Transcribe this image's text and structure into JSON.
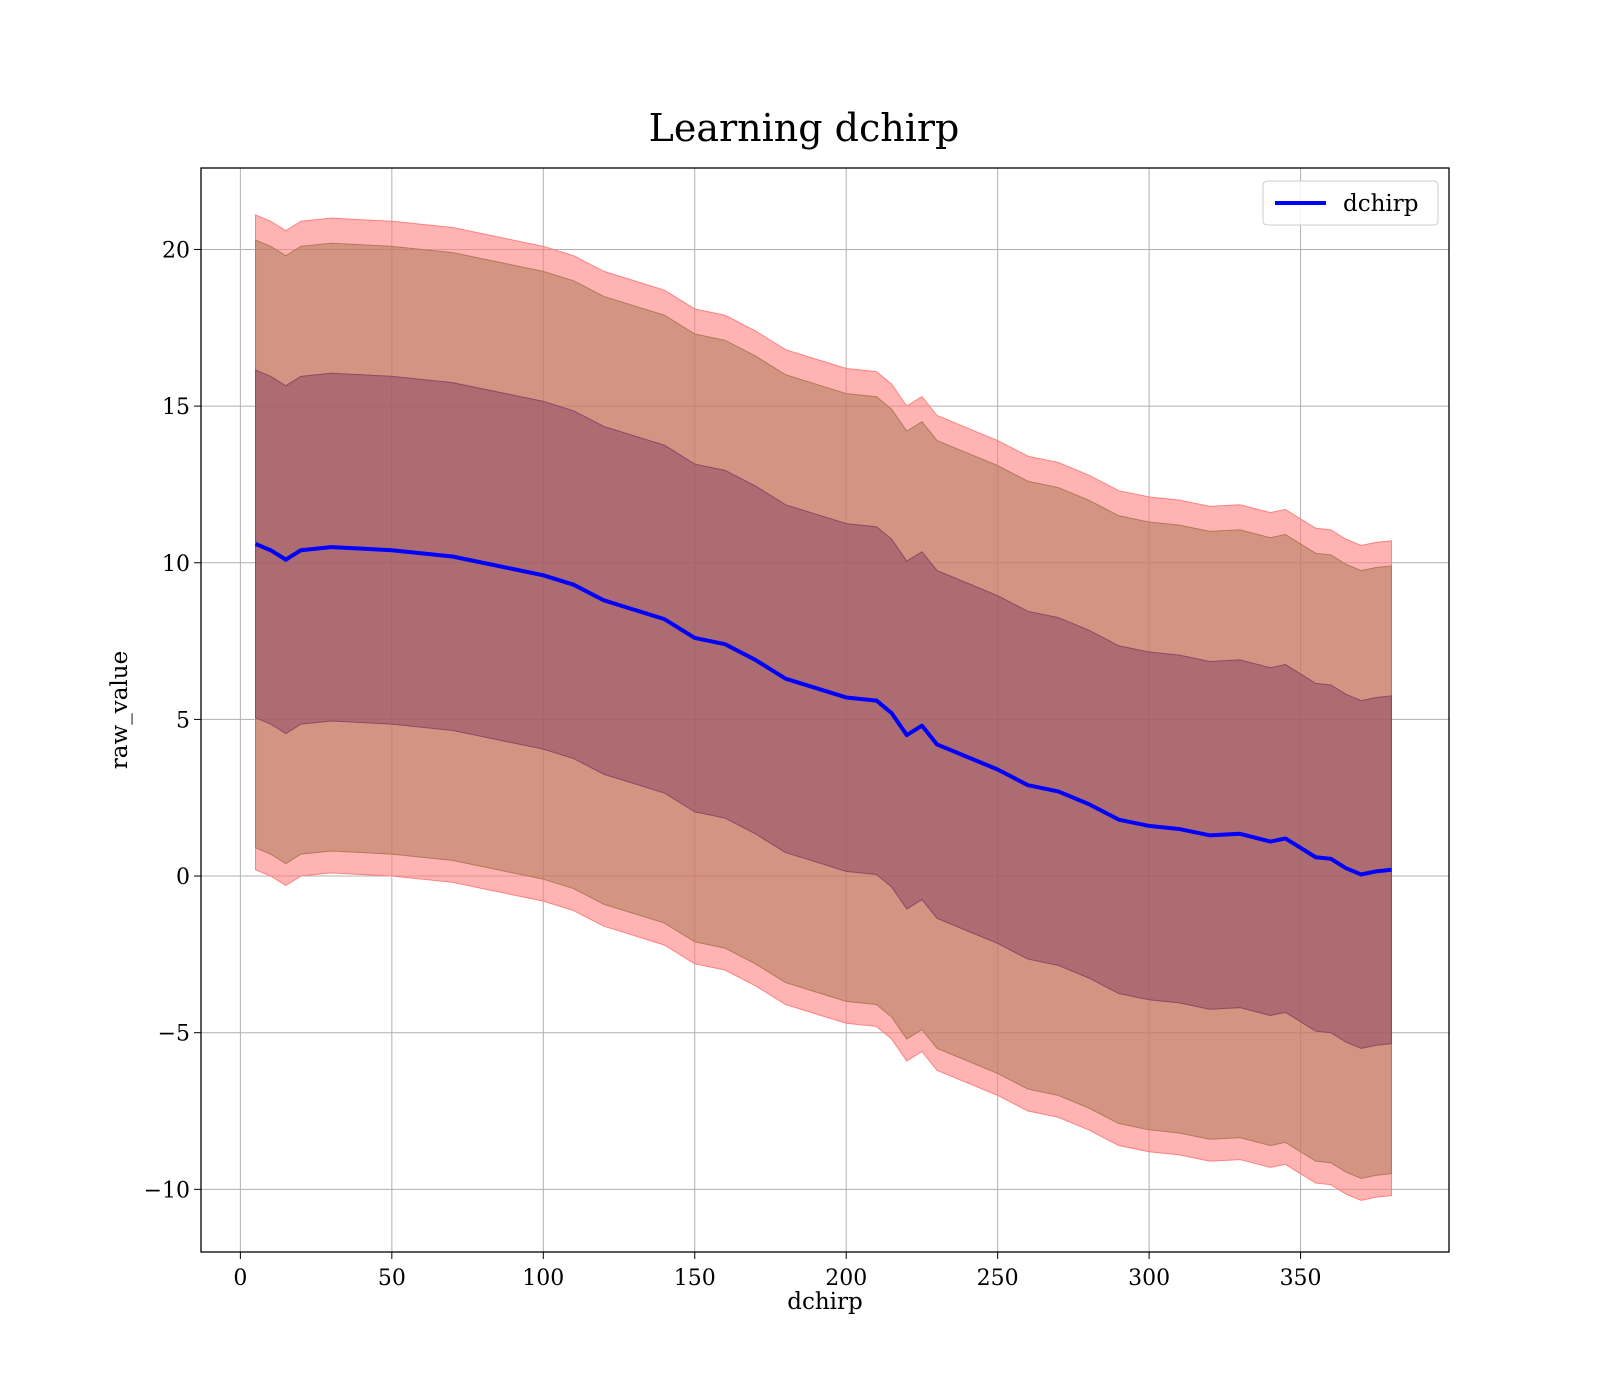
{
  "chart_data": {
    "type": "line",
    "title": "Learning dchirp",
    "xlabel": "dchirp",
    "ylabel": "raw_value",
    "xlim": [
      -13,
      399
    ],
    "ylim": [
      -12,
      22.6
    ],
    "xticks": [
      0,
      50,
      100,
      150,
      200,
      250,
      300,
      350
    ],
    "yticks": [
      -10,
      -5,
      0,
      5,
      10,
      15,
      20
    ],
    "grid": true,
    "legend": {
      "position": "top-right",
      "entries": [
        "dchirp"
      ]
    },
    "x": [
      5,
      10,
      15,
      20,
      30,
      40,
      50,
      60,
      70,
      80,
      90,
      100,
      110,
      120,
      130,
      140,
      150,
      160,
      170,
      180,
      190,
      200,
      210,
      215,
      220,
      225,
      230,
      240,
      250,
      260,
      270,
      280,
      290,
      300,
      310,
      320,
      330,
      340,
      345,
      350,
      355,
      360,
      365,
      370,
      375,
      380
    ],
    "series": [
      {
        "name": "dchirp",
        "color": "#0000ff",
        "values": [
          10.6,
          10.4,
          10.1,
          10.4,
          10.5,
          10.45,
          10.4,
          10.3,
          10.2,
          10.0,
          9.8,
          9.6,
          9.3,
          8.8,
          8.5,
          8.2,
          7.6,
          7.4,
          6.9,
          6.3,
          6.0,
          5.7,
          5.6,
          5.2,
          4.5,
          4.8,
          4.2,
          3.8,
          3.4,
          2.9,
          2.7,
          2.3,
          1.8,
          1.6,
          1.5,
          1.3,
          1.35,
          1.1,
          1.2,
          0.9,
          0.6,
          0.55,
          0.25,
          0.05,
          0.15,
          0.2
        ]
      }
    ],
    "bands": [
      {
        "label": "",
        "color": "#ff8080",
        "opacity": 0.6,
        "lower_offset": -10.4,
        "upper_offset": 10.5
      },
      {
        "label": "",
        "color": "#b07a5a",
        "opacity": 0.55,
        "lower_offset": -9.7,
        "upper_offset": 9.7
      },
      {
        "label": "",
        "color": "#8a4a66",
        "opacity": 0.55,
        "lower_offset": -5.55,
        "upper_offset": 5.55
      }
    ]
  }
}
